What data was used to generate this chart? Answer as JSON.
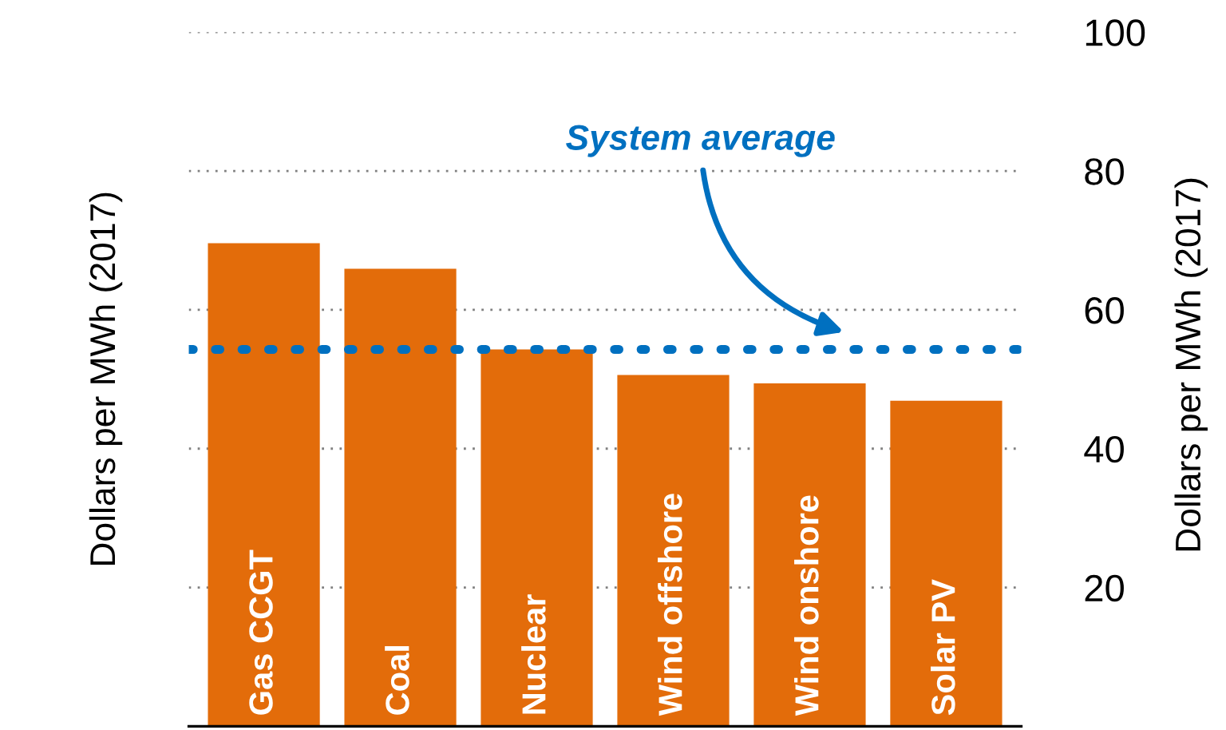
{
  "chart_data": {
    "type": "bar",
    "ylabel": "Dollars per MWh (2017)",
    "y2label": "Dollars per MWh (2017)",
    "categories": [
      "Gas CCGT",
      "Coal",
      "Nuclear",
      "Wind offshore",
      "Wind onshore",
      "Solar PV"
    ],
    "values": [
      69.6,
      65.9,
      54.3,
      50.6,
      49.4,
      46.9
    ],
    "color": "#e36c0a",
    "ylim": [
      0,
      100
    ],
    "yticks": [
      {
        "value": 0,
        "label": null
      },
      20,
      40,
      60,
      80,
      100
    ],
    "grid": "y",
    "ref_lines": [
      {
        "axis": "y",
        "value": 54.3,
        "label": "System average",
        "color": "#0070c0",
        "line_style": "dotted"
      }
    ]
  }
}
